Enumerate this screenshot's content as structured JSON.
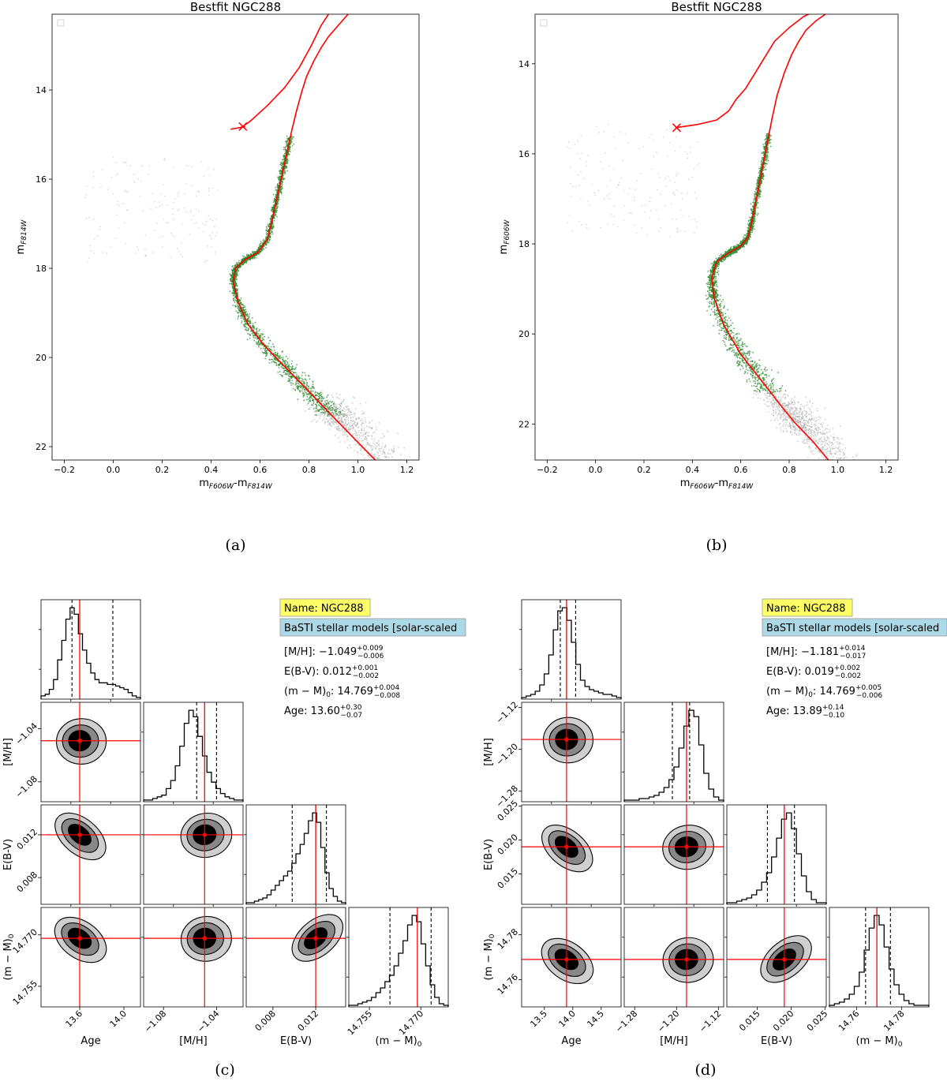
{
  "chart_data": [
    {
      "type": "scatter",
      "panel": "a",
      "caption": "(a)",
      "title": "Bestfit NGC288",
      "xlabel_main": "m",
      "xlabel_sub": "F606W",
      "xlabel_sep": "-m",
      "xlabel_sub2": "F814W",
      "ylabel_main": "m",
      "ylabel_sub": "F814W",
      "xlim": [
        -0.25,
        1.25
      ],
      "ylim": [
        22.3,
        12.3
      ],
      "xticks": [
        -0.2,
        0.0,
        0.2,
        0.4,
        0.6,
        0.8,
        1.0,
        1.2
      ],
      "yticks": [
        14,
        16,
        18,
        20,
        22
      ],
      "legend": "empty box top-left",
      "series": [
        {
          "color": "#ff0000",
          "x": [
            0.52,
            0.56,
            0.63,
            0.7,
            0.76,
            0.81,
            0.85,
            0.88
          ],
          "y": [
            14.85,
            14.7,
            14.35,
            13.95,
            13.5,
            13.0,
            12.55,
            12.3
          ]
        },
        {
          "color": "#ff0000",
          "x": [
            0.48,
            0.5,
            0.54
          ],
          "y": [
            14.88,
            14.86,
            14.82
          ]
        },
        {
          "color": "#ff0000",
          "x": [
            1.08,
            1.0,
            0.92,
            0.85,
            0.78,
            0.7,
            0.62,
            0.55,
            0.51,
            0.49,
            0.5,
            0.54,
            0.59,
            0.63,
            0.65,
            0.67,
            0.69,
            0.71,
            0.73,
            0.75,
            0.77,
            0.79,
            0.82,
            0.85,
            0.88,
            0.92,
            0.96
          ],
          "y": [
            22.35,
            21.9,
            21.45,
            21.05,
            20.65,
            20.2,
            19.75,
            19.25,
            18.75,
            18.3,
            18.0,
            17.8,
            17.65,
            17.35,
            16.9,
            16.4,
            15.9,
            15.4,
            14.9,
            14.45,
            14.05,
            13.7,
            13.35,
            13.05,
            12.8,
            12.55,
            12.3
          ]
        }
      ],
      "marker": {
        "x": 0.53,
        "y": 14.82,
        "symbol": "x",
        "color": "#ff0000"
      },
      "observed_stars_color": "#2e8b2e",
      "field_stars_color": "#b0b0b0"
    },
    {
      "type": "scatter",
      "panel": "b",
      "caption": "(b)",
      "title": "Bestfit NGC288",
      "xlabel_main": "m",
      "xlabel_sub": "F606W",
      "xlabel_sep": "-m",
      "xlabel_sub2": "F814W",
      "ylabel_main": "m",
      "ylabel_sub": "F606W",
      "xlim": [
        -0.25,
        1.25
      ],
      "ylim": [
        22.8,
        12.9
      ],
      "xticks": [
        -0.2,
        0.0,
        0.2,
        0.4,
        0.6,
        0.8,
        1.0,
        1.2
      ],
      "yticks": [
        14,
        16,
        18,
        20,
        22
      ],
      "legend": "empty box top-left",
      "series": [
        {
          "color": "#ff0000",
          "x": [
            0.33,
            0.42,
            0.5,
            0.55,
            0.58,
            0.62,
            0.66,
            0.7,
            0.74,
            0.8,
            0.86,
            0.9
          ],
          "y": [
            15.42,
            15.35,
            15.25,
            15.05,
            14.8,
            14.55,
            14.2,
            13.85,
            13.5,
            13.2,
            12.95,
            12.85
          ]
        },
        {
          "color": "#ff0000",
          "x": [
            0.97,
            0.9,
            0.82,
            0.76,
            0.68,
            0.6,
            0.53,
            0.49,
            0.48,
            0.5,
            0.55,
            0.6,
            0.63,
            0.65,
            0.67,
            0.69,
            0.71,
            0.73,
            0.75,
            0.78,
            0.81,
            0.84,
            0.87,
            0.91,
            0.95
          ],
          "y": [
            22.85,
            22.4,
            21.95,
            21.55,
            21.0,
            20.45,
            19.8,
            19.2,
            18.75,
            18.4,
            18.2,
            18.05,
            17.85,
            17.4,
            16.85,
            16.3,
            15.75,
            15.2,
            14.7,
            14.2,
            13.8,
            13.5,
            13.25,
            13.05,
            12.9
          ]
        }
      ],
      "marker": {
        "x": 0.335,
        "y": 15.42,
        "symbol": "x",
        "color": "#ff0000"
      },
      "observed_stars_color": "#2e8b2e",
      "field_stars_color": "#b0b0b0"
    },
    {
      "type": "corner",
      "panel": "c",
      "caption": "(c)",
      "parameters": [
        "Age",
        "[M/H]",
        "E(B-V)",
        "(m − M)0"
      ],
      "labels": [
        {
          "main": "Age",
          "sub": ""
        },
        {
          "main": "[M/H]",
          "sub": ""
        },
        {
          "main": "E(B-V)",
          "sub": ""
        },
        {
          "main": "(m − M)",
          "sub": "0"
        }
      ],
      "ranges": [
        [
          13.25,
          14.15
        ],
        [
          -1.095,
          -1.02
        ],
        [
          0.0055,
          0.0148
        ],
        [
          14.749,
          14.778
        ]
      ],
      "best": [
        13.6,
        -1.049,
        0.012,
        14.769
      ],
      "quantile_lo": [
        13.53,
        -1.055,
        0.0098,
        14.761
      ],
      "quantile_hi": [
        13.9,
        -1.04,
        0.013,
        14.773
      ],
      "tick_values": [
        [
          13.6,
          14.0
        ],
        [
          -1.08,
          -1.04
        ],
        [
          0.008,
          0.012
        ],
        [
          14.755,
          14.77
        ]
      ],
      "tick_labels": [
        [
          "13.6",
          "14.0"
        ],
        [
          "−1.08",
          "−1.04"
        ],
        [
          "0.008",
          "0.012"
        ],
        [
          "14.755",
          "14.770"
        ]
      ],
      "hist_counts": [
        [
          2,
          3,
          6,
          12,
          24,
          36,
          49,
          56,
          52,
          40,
          30,
          22,
          16,
          12,
          10,
          10,
          9,
          9,
          8,
          7,
          6,
          4,
          2,
          1
        ],
        [
          1,
          1,
          2,
          3,
          4,
          8,
          13,
          22,
          34,
          48,
          56,
          52,
          40,
          28,
          18,
          12,
          8,
          5,
          3,
          2,
          1,
          1
        ],
        [
          1,
          1,
          2,
          3,
          4,
          6,
          9,
          12,
          15,
          18,
          21,
          26,
          32,
          38,
          45,
          53,
          58,
          52,
          36,
          20,
          10,
          5,
          2,
          1
        ],
        [
          1,
          1,
          2,
          3,
          4,
          6,
          9,
          12,
          16,
          20,
          26,
          34,
          42,
          52,
          58,
          54,
          40,
          26,
          14,
          6,
          2,
          1
        ]
      ],
      "info": {
        "name": "Name: NGC288",
        "model": "BaSTI stellar models [solar-scaled",
        "rows": [
          {
            "label": "[M/H]: ",
            "value": "−1.049",
            "sup": "+0.009",
            "sub": "−0.006"
          },
          {
            "label": "E(B-V): ",
            "value": "0.012",
            "sup": "+0.001",
            "sub": "−0.002"
          },
          {
            "label": "(m − M)",
            "labelsub": "0",
            "label2": ": ",
            "value": "14.769",
            "sup": "+0.004",
            "sub": "−0.008"
          },
          {
            "label": "Age: ",
            "value": "13.60",
            "sup": "+0.30",
            "sub": "−0.07"
          }
        ]
      }
    },
    {
      "type": "corner",
      "panel": "d",
      "caption": "(d)",
      "parameters": [
        "Age",
        "[M/H]",
        "E(B-V)",
        "(m − M)0"
      ],
      "labels": [
        {
          "main": "Age",
          "sub": ""
        },
        {
          "main": "[M/H]",
          "sub": ""
        },
        {
          "main": "E(B-V)",
          "sub": ""
        },
        {
          "main": "(m − M)",
          "sub": "0"
        }
      ],
      "ranges": [
        [
          13.1,
          14.85
        ],
        [
          -1.3,
          -1.11
        ],
        [
          0.0105,
          0.0252
        ],
        [
          14.748,
          14.792
        ]
      ],
      "best": [
        13.89,
        -1.181,
        0.019,
        14.769
      ],
      "quantile_lo": [
        13.78,
        -1.208,
        0.0165,
        14.764
      ],
      "quantile_hi": [
        14.05,
        -1.175,
        0.0205,
        14.775
      ],
      "tick_values": [
        [
          13.5,
          14.0,
          14.5
        ],
        [
          -1.28,
          -1.2,
          -1.12
        ],
        [
          0.015,
          0.02,
          0.025
        ],
        [
          14.76,
          14.78
        ]
      ],
      "tick_labels": [
        [
          "13.5",
          "14.0",
          "14.5"
        ],
        [
          "−1.28",
          "−1.20",
          "−1.12"
        ],
        [
          "0.015",
          "0.020",
          "0.025"
        ],
        [
          "14.76",
          "14.78"
        ]
      ],
      "hist_counts": [
        [
          1,
          2,
          3,
          5,
          9,
          16,
          28,
          44,
          56,
          58,
          50,
          36,
          22,
          12,
          8,
          6,
          5,
          4,
          3,
          3,
          2,
          1
        ],
        [
          1,
          1,
          1,
          2,
          2,
          3,
          4,
          6,
          9,
          14,
          22,
          34,
          48,
          58,
          54,
          36,
          18,
          8,
          3,
          1
        ],
        [
          1,
          1,
          2,
          3,
          4,
          6,
          9,
          14,
          20,
          30,
          42,
          54,
          58,
          48,
          32,
          18,
          8,
          3,
          1,
          1
        ],
        [
          1,
          2,
          3,
          5,
          8,
          13,
          22,
          36,
          50,
          58,
          52,
          38,
          24,
          14,
          8,
          4,
          2,
          1,
          1,
          1
        ]
      ],
      "info": {
        "name": "Name: NGC288",
        "model": "BaSTI stellar models [solar-scaled",
        "rows": [
          {
            "label": "[M/H]: ",
            "value": "−1.181",
            "sup": "+0.014",
            "sub": "−0.017"
          },
          {
            "label": "E(B-V): ",
            "value": "0.019",
            "sup": "+0.002",
            "sub": "−0.002"
          },
          {
            "label": "(m − M)",
            "labelsub": "0",
            "label2": ": ",
            "value": "14.769",
            "sup": "+0.005",
            "sub": "−0.006"
          },
          {
            "label": "Age: ",
            "value": "13.89",
            "sup": "+0.14",
            "sub": "−0.10"
          }
        ]
      }
    }
  ]
}
